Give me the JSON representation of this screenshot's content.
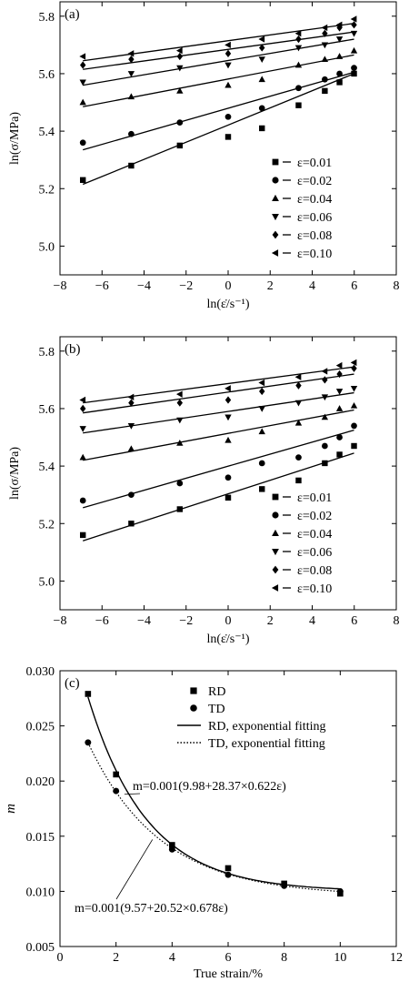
{
  "chart_data": [
    {
      "panel_label": "(a)",
      "type": "scatter",
      "xlabel": "ln(ε̇/s⁻¹)",
      "ylabel": "ln(σ/MPa)",
      "xlim": [
        -8,
        8
      ],
      "ylim": [
        4.9,
        5.85
      ],
      "xticks": [
        "−8",
        "−6",
        "−4",
        "−2",
        "0",
        "2",
        "4",
        "6",
        "8"
      ],
      "yticks": [
        "5.0",
        "5.2",
        "5.4",
        "5.6",
        "5.8"
      ],
      "x": [
        -6.91,
        -4.61,
        -2.3,
        0,
        1.61,
        3.35,
        4.6,
        5.3,
        5.99
      ],
      "legend_position": "bottom-right",
      "series": [
        {
          "name": "ε=0.01",
          "marker": "square",
          "values": [
            5.23,
            5.28,
            5.35,
            5.38,
            5.41,
            5.49,
            5.54,
            5.57,
            5.6
          ],
          "fit": [
            5.215,
            5.6
          ]
        },
        {
          "name": "ε=0.02",
          "marker": "circle",
          "values": [
            5.36,
            5.39,
            5.43,
            5.45,
            5.48,
            5.55,
            5.58,
            5.6,
            5.62
          ],
          "fit": [
            5.335,
            5.605
          ]
        },
        {
          "name": "ε=0.04",
          "marker": "triangle-up",
          "values": [
            5.5,
            5.52,
            5.54,
            5.56,
            5.58,
            5.63,
            5.65,
            5.66,
            5.68
          ],
          "fit": [
            5.485,
            5.665
          ]
        },
        {
          "name": "ε=0.06",
          "marker": "triangle-down",
          "values": [
            5.57,
            5.6,
            5.62,
            5.63,
            5.65,
            5.69,
            5.7,
            5.72,
            5.74
          ],
          "fit": [
            5.56,
            5.72
          ]
        },
        {
          "name": "ε=0.08",
          "marker": "diamond",
          "values": [
            5.63,
            5.65,
            5.66,
            5.67,
            5.69,
            5.72,
            5.74,
            5.76,
            5.77
          ],
          "fit": [
            5.615,
            5.745
          ]
        },
        {
          "name": "ε=0.10",
          "marker": "triangle-left",
          "values": [
            5.66,
            5.67,
            5.68,
            5.7,
            5.72,
            5.74,
            5.76,
            5.77,
            5.79
          ],
          "fit": [
            5.645,
            5.775
          ]
        }
      ]
    },
    {
      "panel_label": "(b)",
      "type": "scatter",
      "xlabel": "ln(ε̇/s⁻¹)",
      "ylabel": "ln(σ/MPa)",
      "xlim": [
        -8,
        8
      ],
      "ylim": [
        4.9,
        5.85
      ],
      "xticks": [
        "−8",
        "−6",
        "−4",
        "−2",
        "0",
        "2",
        "4",
        "6",
        "8"
      ],
      "yticks": [
        "5.0",
        "5.2",
        "5.4",
        "5.6",
        "5.8"
      ],
      "x": [
        -6.91,
        -4.61,
        -2.3,
        0,
        1.61,
        3.35,
        4.6,
        5.3,
        5.99
      ],
      "legend_position": "bottom-right",
      "series": [
        {
          "name": "ε=0.01",
          "marker": "square",
          "values": [
            5.16,
            5.2,
            5.25,
            5.29,
            5.32,
            5.35,
            5.41,
            5.44,
            5.47
          ],
          "fit": [
            5.14,
            5.445
          ]
        },
        {
          "name": "ε=0.02",
          "marker": "circle",
          "values": [
            5.28,
            5.3,
            5.34,
            5.36,
            5.41,
            5.43,
            5.47,
            5.5,
            5.54
          ],
          "fit": [
            5.255,
            5.525
          ]
        },
        {
          "name": "ε=0.04",
          "marker": "triangle-up",
          "values": [
            5.43,
            5.46,
            5.48,
            5.49,
            5.52,
            5.55,
            5.57,
            5.6,
            5.61
          ],
          "fit": [
            5.42,
            5.595
          ]
        },
        {
          "name": "ε=0.06",
          "marker": "triangle-down",
          "values": [
            5.53,
            5.54,
            5.56,
            5.57,
            5.6,
            5.62,
            5.64,
            5.66,
            5.67
          ],
          "fit": [
            5.515,
            5.655
          ]
        },
        {
          "name": "ε=0.08",
          "marker": "diamond",
          "values": [
            5.6,
            5.62,
            5.62,
            5.63,
            5.66,
            5.68,
            5.7,
            5.72,
            5.74
          ],
          "fit": [
            5.585,
            5.72
          ]
        },
        {
          "name": "ε=0.10",
          "marker": "triangle-left",
          "values": [
            5.63,
            5.64,
            5.65,
            5.67,
            5.69,
            5.71,
            5.73,
            5.75,
            5.76
          ],
          "fit": [
            5.62,
            5.745
          ]
        }
      ]
    },
    {
      "panel_label": "(c)",
      "type": "scatter",
      "xlabel": "True strain/%",
      "ylabel": "m",
      "xlim": [
        0,
        12
      ],
      "ylim": [
        0.005,
        0.03
      ],
      "xticks": [
        "0",
        "2",
        "4",
        "6",
        "8",
        "10",
        "12"
      ],
      "yticks": [
        "0.005",
        "0.010",
        "0.015",
        "0.020",
        "0.025",
        "0.030"
      ],
      "x": [
        1,
        2,
        4,
        6,
        8,
        10
      ],
      "legend_position": "top-right",
      "series": [
        {
          "name": "RD",
          "marker": "square",
          "values": [
            0.0279,
            0.0206,
            0.0142,
            0.0121,
            0.0107,
            0.0098
          ]
        },
        {
          "name": "TD",
          "marker": "circle",
          "values": [
            0.0235,
            0.0191,
            0.0138,
            0.0115,
            0.0105,
            0.01
          ]
        },
        {
          "name": "RD, exponential fitting",
          "style": "solid",
          "model": {
            "base": 9.98,
            "amp": 28.37,
            "rate": 0.622
          }
        },
        {
          "name": "TD, exponential fitting",
          "style": "dotted",
          "model": {
            "base": 9.57,
            "amp": 20.52,
            "rate": 0.678
          }
        }
      ],
      "annotations": [
        {
          "text": "m=0.001(9.98+28.37×0.622ε)",
          "points_to": [
            2.3,
            0.0188
          ]
        },
        {
          "text": "m=0.001(9.57+20.52×0.678ε)",
          "points_to": [
            3.3,
            0.0147
          ]
        }
      ]
    }
  ]
}
